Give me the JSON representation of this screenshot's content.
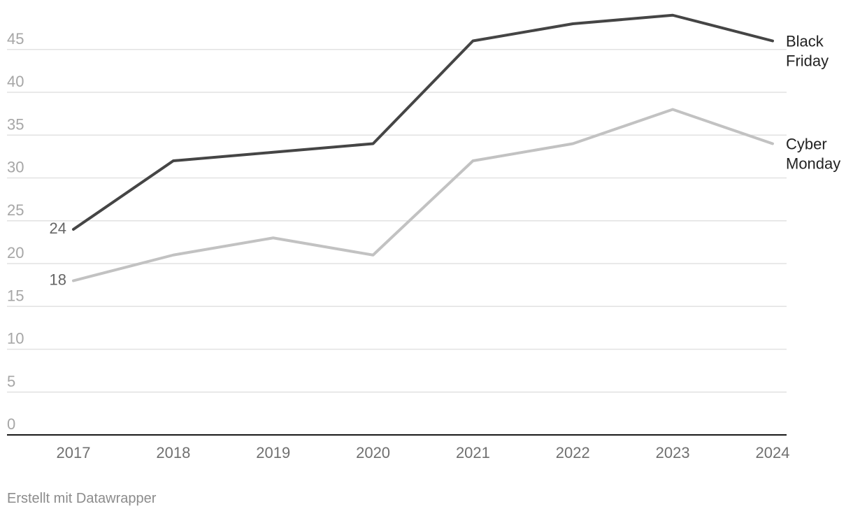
{
  "chart_data": {
    "type": "line",
    "x": [
      "2017",
      "2018",
      "2019",
      "2020",
      "2021",
      "2022",
      "2023",
      "2024"
    ],
    "series": [
      {
        "name": "Black\nFriday",
        "label_lines": [
          "Black",
          "Friday"
        ],
        "values": [
          24,
          32,
          33,
          34,
          46,
          48,
          49,
          46
        ],
        "start_label": "24",
        "color": "#454545"
      },
      {
        "name": "Cyber\nMonday",
        "label_lines": [
          "Cyber",
          "Monday"
        ],
        "values": [
          18,
          21,
          23,
          21,
          32,
          34,
          38,
          34
        ],
        "start_label": "18",
        "color": "#c2c2c2"
      }
    ],
    "y_ticks": [
      "0",
      "5",
      "10",
      "15",
      "20",
      "25",
      "30",
      "35",
      "40",
      "45"
    ],
    "ylim": [
      0,
      50
    ],
    "grid": true,
    "legend": "inline-right",
    "title": "",
    "xlabel": "",
    "ylabel": ""
  },
  "footer": "Erstellt mit Datawrapper",
  "colors": {
    "grid": "#e2e2e2",
    "axis": "#1a1a1a",
    "tick_text": "#a6a6a6",
    "x_tick_text": "#707070",
    "series_label": "#222222"
  }
}
